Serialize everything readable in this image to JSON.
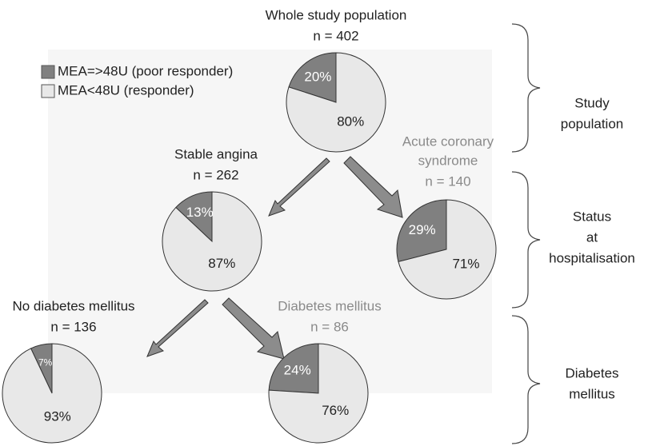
{
  "legend": [
    {
      "name": "MEA=>48U (poor responder)",
      "color": "#808080"
    },
    {
      "name": "MEA<48U (responder)",
      "color": "#e8e8e8"
    }
  ],
  "chart_data": [
    {
      "type": "pie",
      "title": [
        "Whole study population"
      ],
      "subtitle": "n = 402",
      "title_color": "#222222",
      "values": [
        20,
        80
      ],
      "value_labels": [
        "20%",
        "80%"
      ]
    },
    {
      "type": "pie",
      "title": [
        "Stable angina"
      ],
      "subtitle": "n = 262",
      "title_color": "#222222",
      "values": [
        13,
        87
      ],
      "value_labels": [
        "13%",
        "87%"
      ]
    },
    {
      "type": "pie",
      "title": [
        "Acute coronary",
        "syndrome"
      ],
      "subtitle": "n = 140",
      "title_color": "#8a8a8a",
      "values": [
        29,
        71
      ],
      "value_labels": [
        "29%",
        "71%"
      ]
    },
    {
      "type": "pie",
      "title": [
        "No diabetes mellitus"
      ],
      "subtitle": "n = 136",
      "title_color": "#222222",
      "values": [
        7,
        93
      ],
      "value_labels": [
        "7%",
        "93%"
      ]
    },
    {
      "type": "pie",
      "title": [
        "Diabetes mellitus"
      ],
      "subtitle": "n = 86",
      "title_color": "#8a8a8a",
      "values": [
        24,
        76
      ],
      "value_labels": [
        "24%",
        "76%"
      ]
    }
  ],
  "sections": [
    {
      "label": [
        "Study",
        "population"
      ]
    },
    {
      "label": [
        "Status",
        "at",
        "hospitalisation"
      ]
    },
    {
      "label": [
        "Diabetes",
        "mellitus"
      ]
    }
  ]
}
